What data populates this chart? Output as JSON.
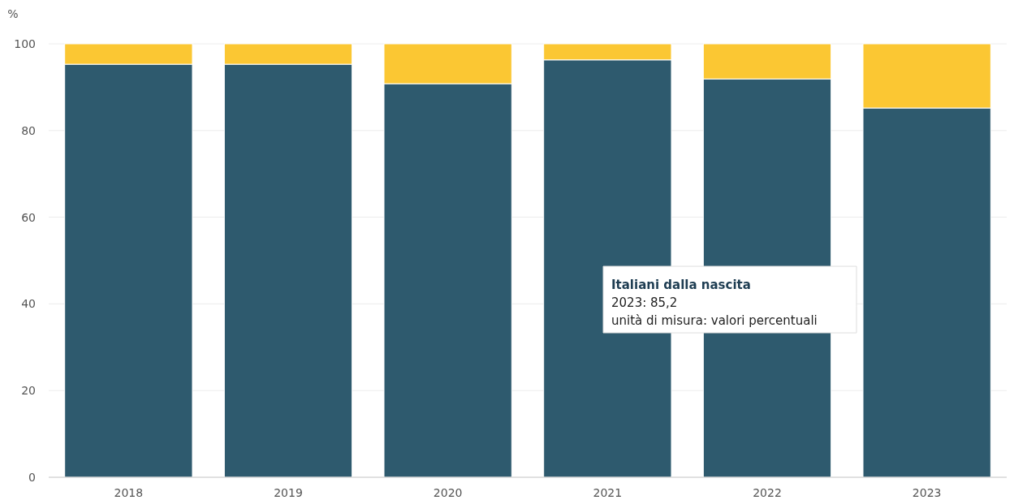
{
  "chart_data": {
    "type": "bar",
    "stacked": true,
    "ylabel": "%",
    "categories": [
      "2018",
      "2019",
      "2020",
      "2021",
      "2022",
      "2023"
    ],
    "series": [
      {
        "color": "#2e5a6e",
        "values": [
          95.3,
          95.3,
          90.8,
          96.3,
          91.9,
          85.2
        ]
      },
      {
        "color": "#fbc733",
        "values": [
          4.7,
          4.7,
          9.2,
          3.7,
          8.1,
          14.8
        ]
      }
    ],
    "ylim": [
      0,
      100
    ],
    "yticks": [
      0,
      20,
      40,
      60,
      80,
      100
    ],
    "grid": "y",
    "annotations": [
      "Italiani dalla nascita",
      "2023: 85,2",
      "unità di misura: valori percentuali"
    ]
  }
}
